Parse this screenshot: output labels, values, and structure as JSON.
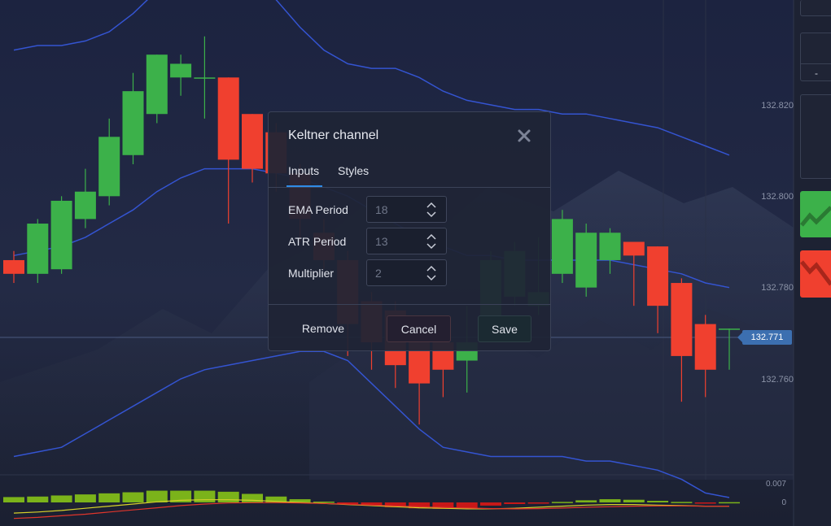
{
  "price_axis": {
    "labels": [
      "132.820",
      "132.800",
      "132.780",
      "132.760"
    ],
    "current_price": "132.771"
  },
  "oscillator_axis": {
    "labels": [
      "0.007",
      "0"
    ]
  },
  "right_panel": {
    "minus_label": "-"
  },
  "dialog": {
    "title": "Keltner channel",
    "tabs": [
      {
        "label": "Inputs",
        "active": true
      },
      {
        "label": "Styles",
        "active": false
      }
    ],
    "fields": [
      {
        "label": "EMA Period",
        "value": "18"
      },
      {
        "label": "ATR Period",
        "value": "13"
      },
      {
        "label": "Multiplier",
        "value": "2"
      }
    ],
    "buttons": {
      "remove": "Remove",
      "cancel": "Cancel",
      "save": "Save"
    },
    "close_icon": "close-icon"
  },
  "colors": {
    "bull": "#3cb14a",
    "bear": "#f0402f",
    "band": "#3454d1",
    "accent": "#2f8be6",
    "current_price_badge": "#3c6fb0"
  },
  "chart_data": {
    "type": "candlestick",
    "price_scale": {
      "min": 132.745,
      "max": 132.835
    },
    "candles": [
      {
        "o": 132.786,
        "h": 132.788,
        "l": 132.781,
        "c": 132.783
      },
      {
        "o": 132.783,
        "h": 132.795,
        "l": 132.781,
        "c": 132.794
      },
      {
        "o": 132.784,
        "h": 132.8,
        "l": 132.783,
        "c": 132.799
      },
      {
        "o": 132.795,
        "h": 132.806,
        "l": 132.793,
        "c": 132.801
      },
      {
        "o": 132.8,
        "h": 132.817,
        "l": 132.798,
        "c": 132.813
      },
      {
        "o": 132.809,
        "h": 132.827,
        "l": 132.807,
        "c": 132.823
      },
      {
        "o": 132.818,
        "h": 132.831,
        "l": 132.816,
        "c": 132.831
      },
      {
        "o": 132.826,
        "h": 132.831,
        "l": 132.822,
        "c": 132.829
      },
      {
        "o": 132.826,
        "h": 132.835,
        "l": 132.817,
        "c": 132.826
      },
      {
        "o": 132.826,
        "h": 132.826,
        "l": 132.794,
        "c": 132.808
      },
      {
        "o": 132.818,
        "h": 132.818,
        "l": 132.803,
        "c": 132.806
      },
      {
        "o": 132.814,
        "h": 132.816,
        "l": 132.801,
        "c": 132.805
      },
      {
        "o": 132.805,
        "h": 132.807,
        "l": 132.79,
        "c": 132.795
      },
      {
        "o": 132.792,
        "h": 132.795,
        "l": 132.784,
        "c": 132.786
      },
      {
        "o": 132.786,
        "h": 132.788,
        "l": 132.765,
        "c": 132.772
      },
      {
        "o": 132.777,
        "h": 132.779,
        "l": 132.762,
        "c": 132.768
      },
      {
        "o": 132.775,
        "h": 132.777,
        "l": 132.758,
        "c": 132.763
      },
      {
        "o": 132.768,
        "h": 132.769,
        "l": 132.75,
        "c": 132.759
      },
      {
        "o": 132.768,
        "h": 132.77,
        "l": 132.756,
        "c": 132.762
      },
      {
        "o": 132.764,
        "h": 132.776,
        "l": 132.757,
        "c": 132.768
      },
      {
        "o": 132.77,
        "h": 132.788,
        "l": 132.768,
        "c": 132.786
      },
      {
        "o": 132.778,
        "h": 132.79,
        "l": 132.776,
        "c": 132.788
      },
      {
        "o": 132.776,
        "h": 132.791,
        "l": 132.774,
        "c": 132.779
      },
      {
        "o": 132.783,
        "h": 132.797,
        "l": 132.781,
        "c": 132.795
      },
      {
        "o": 132.78,
        "h": 132.794,
        "l": 132.778,
        "c": 132.792
      },
      {
        "o": 132.786,
        "h": 132.793,
        "l": 132.783,
        "c": 132.792
      },
      {
        "o": 132.79,
        "h": 132.79,
        "l": 132.776,
        "c": 132.787
      },
      {
        "o": 132.789,
        "h": 132.789,
        "l": 132.77,
        "c": 132.776
      },
      {
        "o": 132.781,
        "h": 132.782,
        "l": 132.755,
        "c": 132.765
      },
      {
        "o": 132.772,
        "h": 132.774,
        "l": 132.756,
        "c": 132.762
      },
      {
        "o": 132.771,
        "h": 132.771,
        "l": 132.762,
        "c": 132.771
      }
    ],
    "upper_band": [
      132.832,
      132.833,
      132.833,
      132.834,
      132.836,
      132.84,
      132.845,
      132.848,
      132.85,
      132.85,
      132.848,
      132.843,
      132.837,
      132.832,
      132.829,
      132.828,
      132.828,
      132.826,
      132.823,
      132.821,
      132.82,
      132.819,
      132.819,
      132.818,
      132.818,
      132.817,
      132.816,
      132.815,
      132.813,
      132.811,
      132.809
    ],
    "middle_band": [
      132.787,
      132.788,
      132.789,
      132.791,
      132.794,
      132.797,
      132.801,
      132.804,
      132.806,
      132.806,
      132.806,
      132.805,
      132.804,
      132.802,
      132.8,
      132.797,
      132.794,
      132.791,
      132.789,
      132.787,
      132.787,
      132.786,
      132.786,
      132.786,
      132.786,
      132.786,
      132.785,
      132.784,
      132.783,
      132.781,
      132.78
    ],
    "lower_band": [
      132.743,
      132.744,
      132.745,
      132.748,
      132.751,
      132.754,
      132.757,
      132.76,
      132.762,
      132.763,
      132.764,
      132.765,
      132.766,
      132.766,
      132.764,
      132.759,
      132.754,
      132.749,
      132.745,
      132.744,
      132.743,
      132.743,
      132.743,
      132.743,
      132.742,
      132.742,
      132.741,
      132.74,
      132.738,
      132.735,
      132.734
    ],
    "histogram": [
      0.002,
      0.0022,
      0.0026,
      0.003,
      0.0034,
      0.0038,
      0.0044,
      0.0044,
      0.0044,
      0.004,
      0.0032,
      0.0022,
      0.0012,
      0.0003,
      -0.0006,
      -0.0012,
      -0.0018,
      -0.0022,
      -0.0024,
      -0.002,
      -0.0012,
      -0.0006,
      -0.0002,
      0.0002,
      0.0008,
      0.0012,
      0.001,
      0.0006,
      0.0002,
      -0.0002,
      0.0001
    ],
    "osc_line_yellow": [
      -0.004,
      -0.0036,
      -0.003,
      -0.0022,
      -0.0014,
      -0.0006,
      0.0002,
      0.0008,
      0.001,
      0.001,
      0.0008,
      0.0004,
      0.0,
      -0.0004,
      -0.0008,
      -0.0012,
      -0.0016,
      -0.002,
      -0.0022,
      -0.0024,
      -0.0024,
      -0.0022,
      -0.0018,
      -0.0014,
      -0.001,
      -0.0008,
      -0.0008,
      -0.001,
      -0.0012,
      -0.0014,
      -0.0014
    ],
    "osc_line_red": [
      -0.006,
      -0.0056,
      -0.005,
      -0.0044,
      -0.0036,
      -0.0028,
      -0.002,
      -0.0012,
      -0.0006,
      -0.0002,
      -0.0001,
      -0.0001,
      -0.0002,
      -0.0004,
      -0.0007,
      -0.001,
      -0.0013,
      -0.0016,
      -0.0019,
      -0.0021,
      -0.0023,
      -0.0024,
      -0.0023,
      -0.0021,
      -0.0018,
      -0.0016,
      -0.0014,
      -0.0013,
      -0.0013,
      -0.0014,
      -0.0014
    ]
  }
}
